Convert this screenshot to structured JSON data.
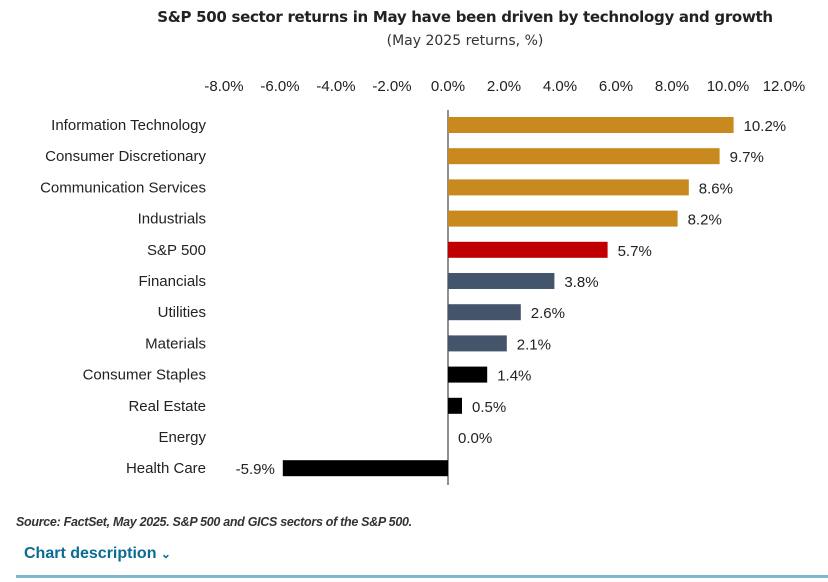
{
  "chart_data": {
    "type": "bar",
    "orientation": "horizontal",
    "title": "S&P 500 sector returns in May have been driven by technology and growth",
    "subtitle": "(May 2025 returns, %)",
    "xlim": [
      -8,
      12
    ],
    "xticks": [
      "-8.0%",
      "-6.0%",
      "-4.0%",
      "-2.0%",
      "0.0%",
      "2.0%",
      "4.0%",
      "6.0%",
      "8.0%",
      "10.0%",
      "12.0%"
    ],
    "xtick_values": [
      -8,
      -6,
      -4,
      -2,
      0,
      2,
      4,
      6,
      8,
      10,
      12
    ],
    "grid": false,
    "categories": [
      "Information Technology",
      "Consumer Discretionary",
      "Communication Services",
      "Industrials",
      "S&P 500",
      "Financials",
      "Utilities",
      "Materials",
      "Consumer Staples",
      "Real Estate",
      "Energy",
      "Health Care"
    ],
    "values": [
      10.2,
      9.7,
      8.6,
      8.2,
      5.7,
      3.8,
      2.6,
      2.1,
      1.4,
      0.5,
      0.0,
      -5.9
    ],
    "labels": [
      "10.2%",
      "9.7%",
      "8.6%",
      "8.2%",
      "5.7%",
      "3.8%",
      "2.6%",
      "2.1%",
      "1.4%",
      "0.5%",
      "0.0%",
      "-5.9%"
    ],
    "colors": [
      "#C8891E",
      "#C8891E",
      "#C8891E",
      "#C8891E",
      "#C00000",
      "#44546A",
      "#44546A",
      "#44546A",
      "#000000",
      "#000000",
      "#000000",
      "#000000"
    ]
  },
  "source": "Source: FactSet, May 2025. S&P 500 and GICS sectors of the S&P 500.",
  "chart_description_label": "Chart description"
}
